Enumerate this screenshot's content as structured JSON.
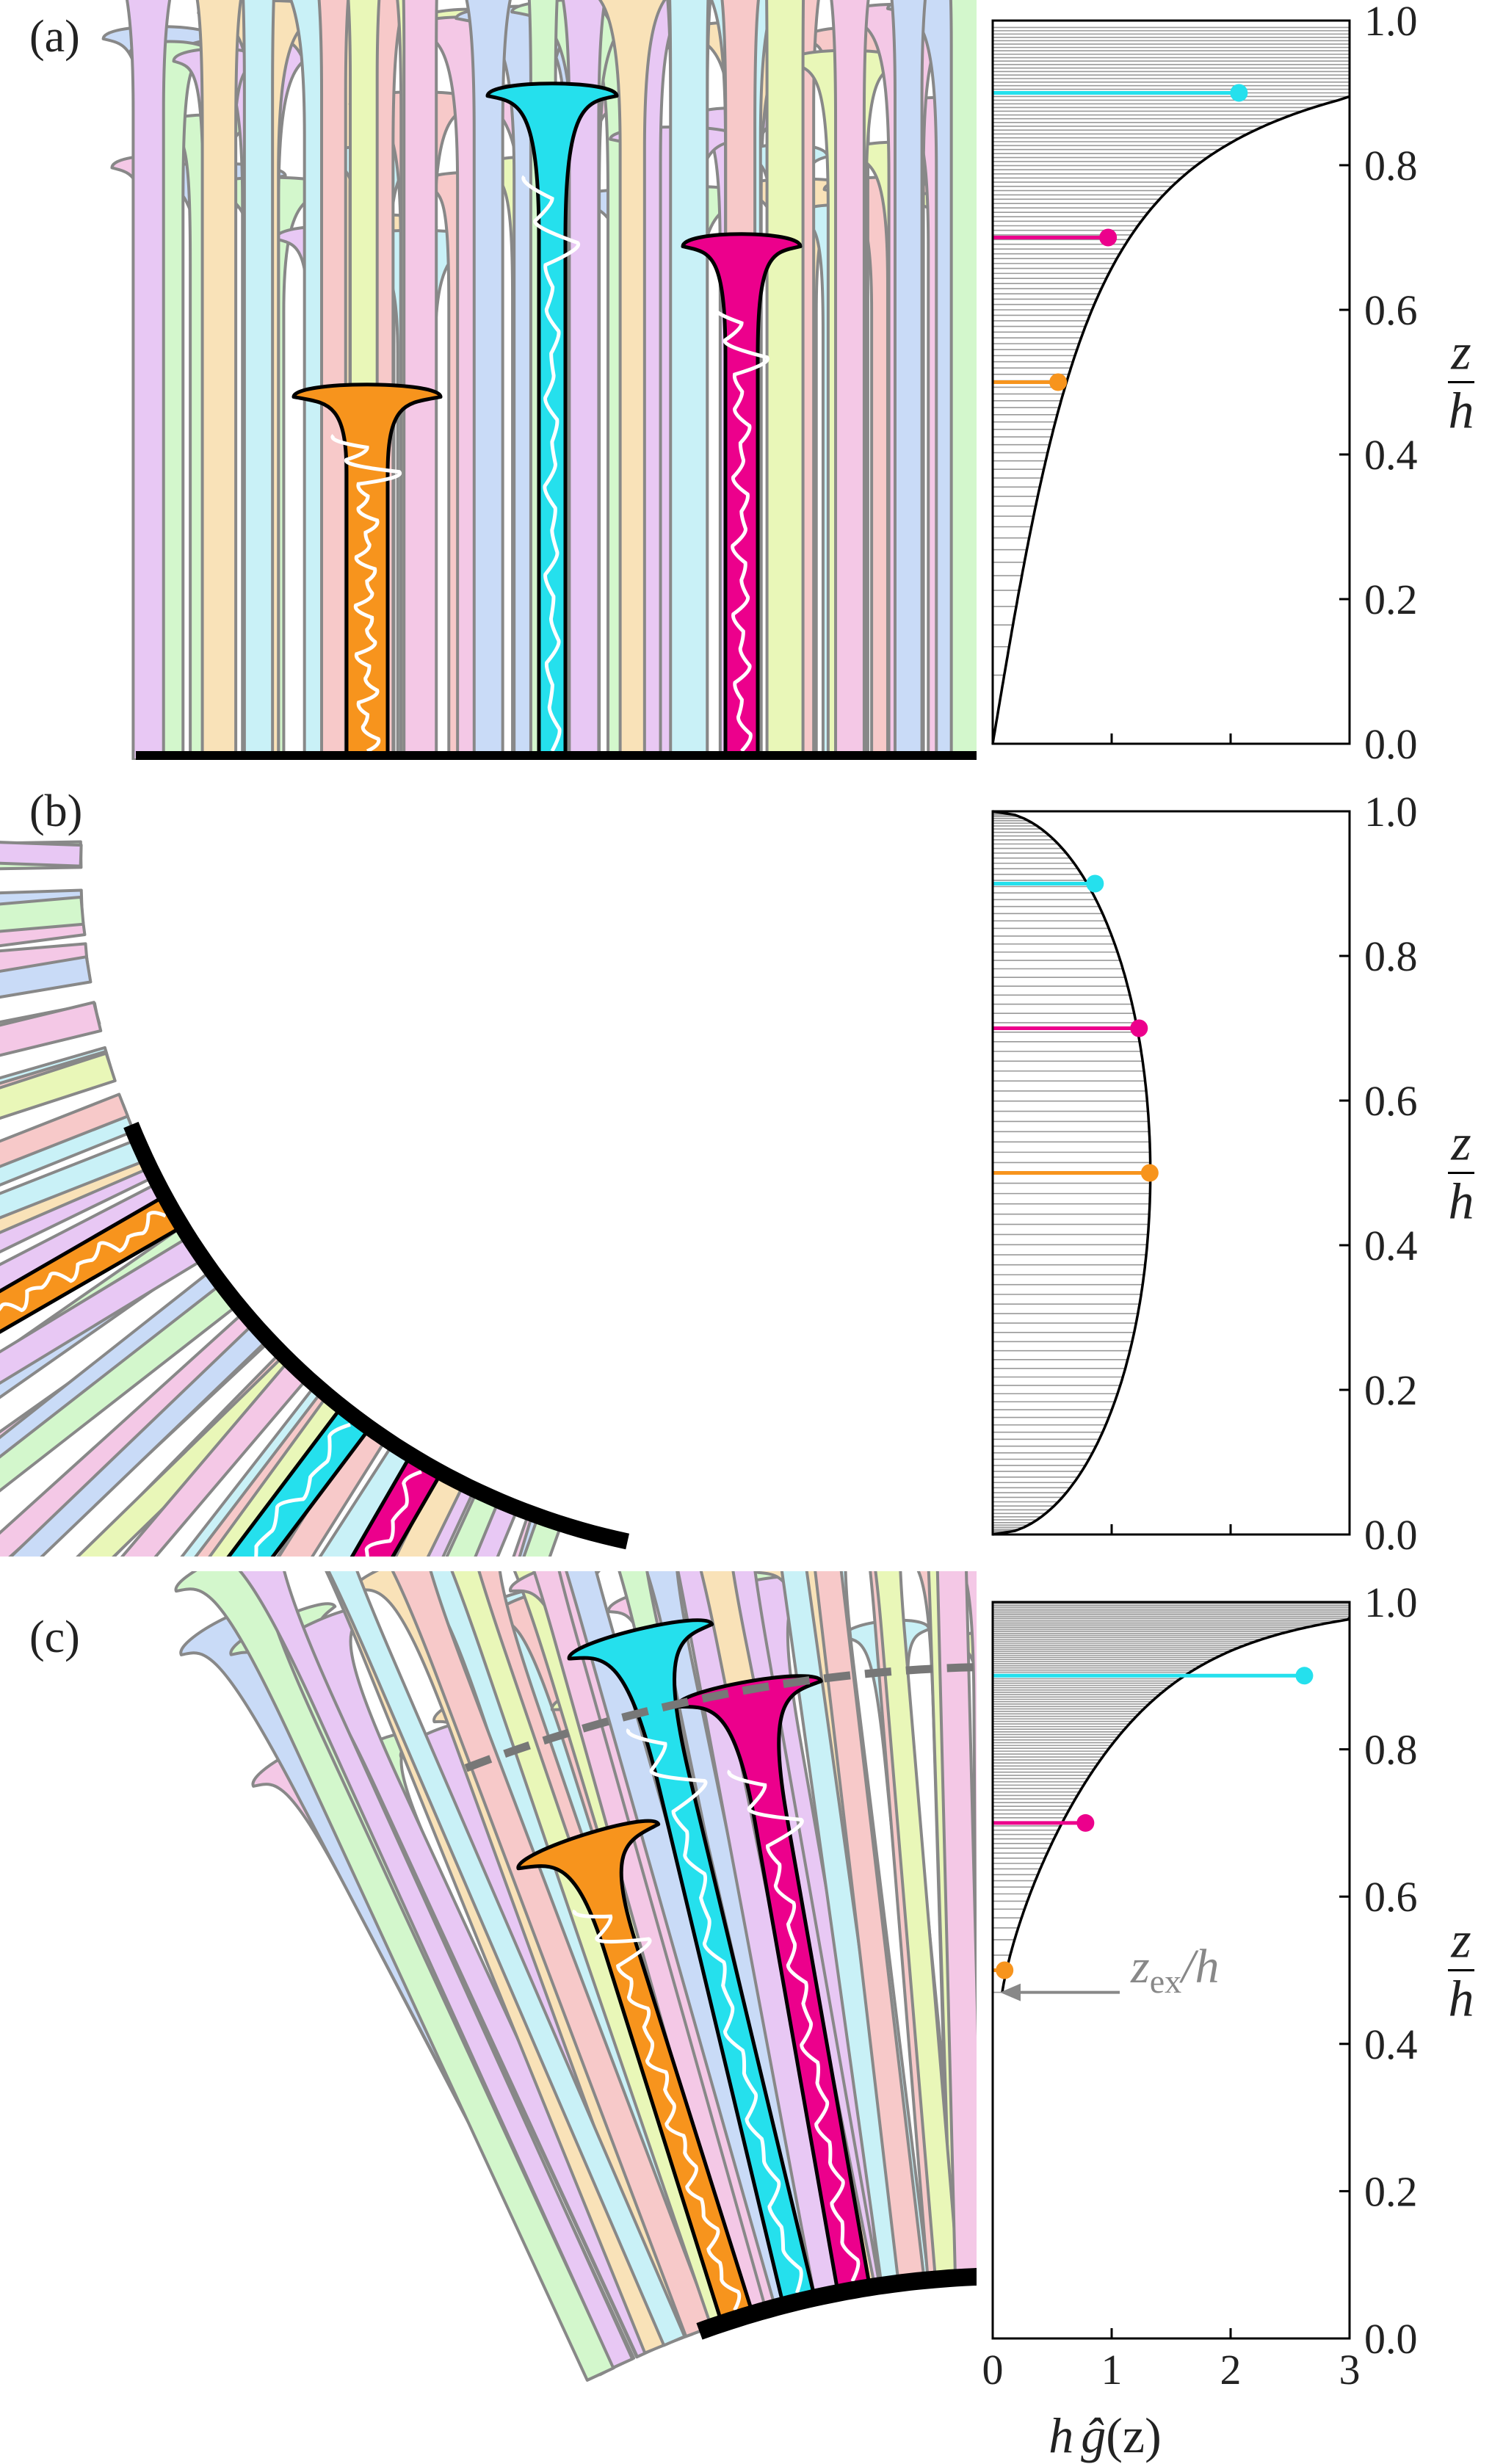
{
  "panels": [
    {
      "label": "(a)",
      "illustration": "vertical brushes on flat surface",
      "curve": "increasing",
      "markers": [
        {
          "z_over_h": 0.5,
          "hg": 0.55,
          "color": "#f7941d"
        },
        {
          "z_over_h": 0.7,
          "hg": 0.97,
          "color": "#ec008c"
        },
        {
          "z_over_h": 0.9,
          "hg": 2.07,
          "color": "#25e0ed"
        }
      ]
    },
    {
      "label": "(b)",
      "illustration": "brushes on concave surface",
      "curve": "semicircle",
      "markers": [
        {
          "z_over_h": 0.5,
          "hg": 1.32,
          "color": "#f7941d"
        },
        {
          "z_over_h": 0.7,
          "hg": 1.23,
          "color": "#ec008c"
        },
        {
          "z_over_h": 0.9,
          "hg": 0.86,
          "color": "#25e0ed"
        }
      ]
    },
    {
      "label": "(c)",
      "illustration": "brushes on convex surface",
      "curve": "exclusion zone",
      "z_ex_over_h": 0.47,
      "annotation_main": "z",
      "annotation_sub": "ex",
      "annotation_tail": "/h",
      "markers": [
        {
          "z_over_h": 0.5,
          "hg": 0.1,
          "color": "#f7941d"
        },
        {
          "z_over_h": 0.7,
          "hg": 0.78,
          "color": "#ec008c"
        },
        {
          "z_over_h": 0.9,
          "hg": 2.62,
          "color": "#25e0ed"
        }
      ]
    }
  ],
  "chart_data": {
    "type": "line",
    "y_axis": {
      "label_num": "z",
      "label_den": "h",
      "ticks": [
        "0.0",
        "0.2",
        "0.4",
        "0.6",
        "0.8",
        "1.0"
      ],
      "range": [
        0,
        1
      ]
    },
    "x_axis": {
      "label_h": "h",
      "label_g": "ĝ",
      "label_arg": "(z)",
      "ticks": [
        "0",
        "1",
        "2",
        "3"
      ],
      "range": [
        0,
        3
      ]
    },
    "grid": false
  },
  "colors": {
    "orange": "#f7941d",
    "magenta": "#ec008c",
    "cyan": "#25e0ed",
    "pastels": [
      "#f4c8e6",
      "#c9dbf7",
      "#d3f7cc",
      "#e8c8f4",
      "#f9e2b8",
      "#c9f1f7",
      "#f7c9c9",
      "#e9f7b8"
    ]
  }
}
